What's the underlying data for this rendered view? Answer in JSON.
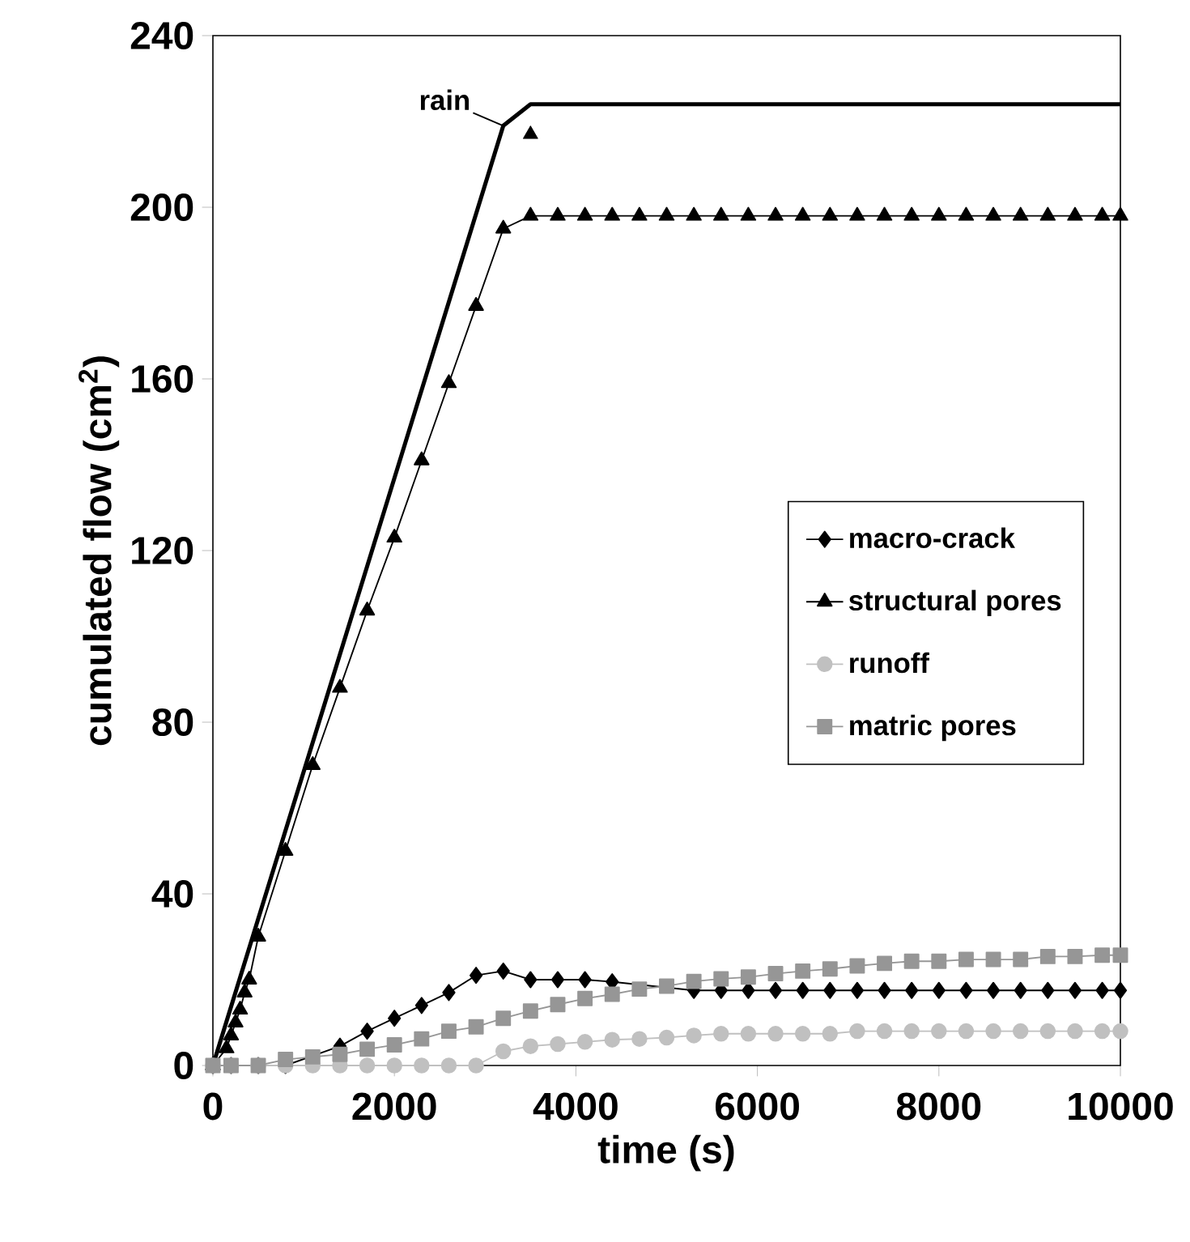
{
  "chart_data": {
    "type": "line",
    "xlabel": "time (s)",
    "ylabel": "cumulated flow (cm$^{2}$)",
    "xlim": [
      0,
      10000
    ],
    "ylim": [
      0,
      240
    ],
    "xticks": [
      0,
      2000,
      4000,
      6000,
      8000,
      10000
    ],
    "yticks": [
      0,
      40,
      80,
      120,
      160,
      200,
      240
    ],
    "grid": false,
    "legend": "right",
    "annotations": [
      {
        "text": "rain",
        "x": 3200,
        "y": 219
      }
    ],
    "series": [
      {
        "color": "#000000",
        "marker": "none",
        "x": [
          0,
          3200,
          3500,
          10000
        ],
        "values": [
          0,
          219,
          224,
          224
        ]
      },
      {
        "name": "macro-crack",
        "color": "#000000",
        "marker": "diamond",
        "x": [
          0,
          200,
          500,
          800,
          1100,
          1400,
          1700,
          2000,
          2300,
          2600,
          2900,
          3200,
          3500,
          3800,
          4100,
          4400,
          4700,
          5000,
          5300,
          5600,
          5900,
          6200,
          6500,
          6800,
          7100,
          7400,
          7700,
          8000,
          8300,
          8600,
          8900,
          9200,
          9500,
          9800,
          10000
        ],
        "values": [
          0,
          0,
          0,
          0,
          null,
          4.5,
          8,
          11,
          14,
          17,
          21,
          22,
          20,
          20,
          20,
          19.5,
          null,
          null,
          17.5,
          17.5,
          17.5,
          17.5,
          17.5,
          17.5,
          17.5,
          17.5,
          17.5,
          17.5,
          17.5,
          17.5,
          17.5,
          17.5,
          17.5,
          17.5,
          17.5
        ]
      },
      {
        "name": "structural pores",
        "color": "#000000",
        "marker": "triangle",
        "x": [
          0,
          100,
          150,
          200,
          250,
          300,
          350,
          400,
          500,
          800,
          1100,
          1400,
          1700,
          2000,
          2300,
          2600,
          2900,
          3200,
          3500,
          3800,
          4100,
          4400,
          4700,
          5000,
          5300,
          5600,
          5900,
          6200,
          6500,
          6800,
          7100,
          7400,
          7700,
          8000,
          8300,
          8600,
          8900,
          9200,
          9500,
          9800,
          10000
        ],
        "values": [
          0,
          null,
          4,
          7,
          10,
          13,
          17,
          20,
          30,
          50,
          70,
          88,
          106,
          123,
          141,
          159,
          177,
          195,
          198,
          198,
          198,
          198,
          198,
          198,
          198,
          198,
          198,
          198,
          198,
          198,
          198,
          198,
          198,
          198,
          198,
          198,
          198,
          198,
          198,
          198,
          198
        ]
      },
      {
        "name": "runoff",
        "color": "#c0c0c0",
        "marker": "circle",
        "x": [
          0,
          200,
          500,
          800,
          1100,
          1400,
          1700,
          2000,
          2300,
          2600,
          2900,
          3200,
          3500,
          3800,
          4100,
          4400,
          4700,
          5000,
          5300,
          5600,
          5900,
          6200,
          6500,
          6800,
          7100,
          7400,
          7700,
          8000,
          8300,
          8600,
          8900,
          9200,
          9500,
          9800,
          10000
        ],
        "values": [
          0,
          0,
          0,
          0,
          0,
          0,
          0,
          0,
          0,
          0,
          0,
          3.3,
          4.5,
          5,
          5.5,
          6,
          6.2,
          6.5,
          7,
          7.4,
          7.4,
          7.4,
          7.4,
          7.4,
          8,
          8,
          8,
          8,
          8,
          8,
          8,
          8,
          8,
          8,
          8
        ]
      },
      {
        "name": "matric pores",
        "color": "#969696",
        "marker": "square",
        "x": [
          0,
          200,
          500,
          800,
          1100,
          1400,
          1700,
          2000,
          2300,
          2600,
          2900,
          3200,
          3500,
          3800,
          4100,
          4400,
          4700,
          5000,
          5300,
          5600,
          5900,
          6200,
          6500,
          6800,
          7100,
          7400,
          7700,
          8000,
          8300,
          8600,
          8900,
          9200,
          9500,
          9800,
          10000
        ],
        "values": [
          0,
          0,
          0,
          1.4,
          2,
          2.6,
          3.8,
          4.8,
          6.2,
          8,
          9,
          11,
          12.7,
          14.2,
          15.6,
          16.6,
          17.8,
          18.5,
          19.6,
          20.2,
          20.6,
          21.4,
          22,
          22.5,
          23.2,
          23.8,
          24.3,
          24.3,
          24.7,
          24.7,
          24.7,
          25.4,
          25.4,
          25.7,
          25.7
        ]
      },
      {
        "type": "scatter",
        "color": "#000000",
        "marker": "triangle",
        "x": [
          3500
        ],
        "values": [
          217
        ]
      }
    ]
  }
}
